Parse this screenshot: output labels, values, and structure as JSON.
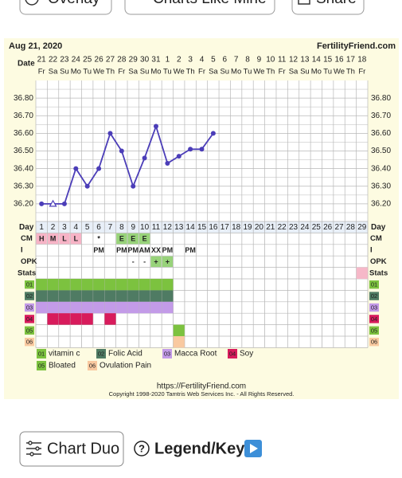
{
  "toolbar": {
    "buttons": [
      "Overlay",
      "Charts Like Mine",
      "Share"
    ]
  },
  "chart_data": {
    "type": "line",
    "title": "Aug 21, 2020",
    "site": "FertilityFriend.com",
    "date_label": "Date",
    "categories": [
      21,
      22,
      23,
      24,
      25,
      26,
      27,
      28,
      29,
      30,
      31,
      1,
      2,
      3,
      4,
      5,
      6,
      7,
      8,
      9,
      10,
      11,
      12,
      13,
      14,
      15,
      16,
      17,
      18
    ],
    "weekdays": [
      "Fr",
      "Sa",
      "Su",
      "Mo",
      "Tu",
      "We",
      "Th",
      "Fr",
      "Sa",
      "Su",
      "Mo",
      "Tu",
      "We",
      "Th",
      "Fr",
      "Sa",
      "Su",
      "Mo",
      "Tu",
      "We",
      "Th",
      "Fr",
      "Sa",
      "Su",
      "Mo",
      "Tu",
      "We",
      "Th",
      "Fr"
    ],
    "series": [
      {
        "color": "#4b3db8",
        "values": [
          36.2,
          36.2,
          36.2,
          36.4,
          36.3,
          36.4,
          36.6,
          36.5,
          36.3,
          36.46,
          36.64,
          36.43,
          36.47,
          36.51,
          36.51,
          36.6,
          null,
          null,
          null,
          null,
          null,
          null,
          null,
          null,
          null,
          null,
          null,
          null,
          null
        ],
        "markers": [
          "circle",
          "triangle-open",
          "circle",
          "circle",
          "circle",
          "circle",
          "circle",
          "circle",
          "circle",
          "circle",
          "circle",
          "circle",
          "circle",
          "circle",
          "circle",
          "circle",
          null,
          null,
          null,
          null,
          null,
          null,
          null,
          null,
          null,
          null,
          null,
          null,
          null
        ]
      }
    ],
    "ylim": [
      36.1,
      36.9
    ],
    "yticks": [
      {
        "value": 36.2,
        "label": "36.20"
      },
      {
        "value": 36.3,
        "label": "36.30"
      },
      {
        "value": 36.4,
        "label": "36.40"
      },
      {
        "value": 36.5,
        "label": "36.50"
      },
      {
        "value": 36.6,
        "label": "36.60"
      },
      {
        "value": 36.7,
        "label": "36.70"
      },
      {
        "value": 36.8,
        "label": "36.80"
      }
    ],
    "grid": true,
    "day_label": "Day",
    "days": [
      1,
      2,
      3,
      4,
      5,
      6,
      7,
      8,
      9,
      10,
      11,
      12,
      13,
      14,
      15,
      16,
      17,
      18,
      19,
      20,
      21,
      22,
      23,
      24,
      25,
      26,
      27,
      28,
      29
    ],
    "rows": [
      {
        "label": "CM",
        "cells": [
          {
            "text": "H",
            "color": "#f7b3c6"
          },
          {
            "text": "M",
            "color": "#f7b3c6"
          },
          {
            "text": "L",
            "color": "#f7b3c6"
          },
          {
            "text": "L",
            "color": "#f7b3c6"
          },
          null,
          {
            "text": "*"
          },
          null,
          {
            "text": "E",
            "color": "#98d37a"
          },
          {
            "text": "E",
            "color": "#98d37a"
          },
          {
            "text": "E",
            "color": "#98d37a"
          },
          null,
          null,
          null,
          null,
          null,
          null,
          null,
          null,
          null,
          null,
          null,
          null,
          null,
          null,
          null,
          null,
          null,
          null,
          null
        ]
      },
      {
        "label": "I",
        "cells": [
          null,
          null,
          null,
          null,
          null,
          {
            "text": "PM"
          },
          null,
          {
            "text": "PM"
          },
          {
            "text": "PM"
          },
          {
            "text": "AM"
          },
          {
            "text": "XX"
          },
          {
            "text": "PM"
          },
          null,
          {
            "text": "PM"
          },
          null,
          null,
          null,
          null,
          null,
          null,
          null,
          null,
          null,
          null,
          null,
          null,
          null,
          null,
          null
        ]
      },
      {
        "label": "OPK",
        "cells": [
          null,
          null,
          null,
          null,
          null,
          null,
          null,
          null,
          {
            "text": "-"
          },
          {
            "text": "-"
          },
          {
            "text": "+",
            "color": "#98d37a"
          },
          {
            "text": "+",
            "color": "#98d37a"
          },
          null,
          null,
          null,
          null,
          null,
          null,
          null,
          null,
          null,
          null,
          null,
          null,
          null,
          null,
          null,
          null,
          null
        ]
      }
    ],
    "stats": {
      "label": "Stats",
      "color": "#f6b8c8",
      "days": [
        29
      ]
    },
    "stat_rows": [
      {
        "code": "01",
        "name": "vitamin c",
        "color": "#7cc23f",
        "days": [
          1,
          2,
          3,
          4,
          5,
          6,
          7,
          8,
          9,
          10,
          11,
          12
        ]
      },
      {
        "code": "02",
        "name": "Folic Acid",
        "color": "#4f7b63",
        "days": [
          1,
          2,
          3,
          4,
          5,
          6,
          7,
          8,
          9,
          10,
          11,
          12
        ]
      },
      {
        "code": "03",
        "name": "Macca Root",
        "color": "#c39be8",
        "days": [
          1,
          2,
          3,
          4,
          5,
          6,
          7,
          8,
          9,
          10,
          11,
          12
        ]
      },
      {
        "code": "04",
        "name": "Soy",
        "color": "#d81b5c",
        "days": [
          2,
          3,
          4,
          5,
          7
        ]
      },
      {
        "code": "05",
        "name": "Bloated",
        "color": "#7cc23f",
        "days": [
          13
        ]
      },
      {
        "code": "06",
        "name": "Ovulation Pain",
        "color": "#f9c9a0",
        "days": [
          13
        ]
      }
    ],
    "footer": {
      "url": "https://FertilityFriend.com",
      "copyright": "Copyright 1998-2020 Tamtris Web Services Inc. - All Rights Reserved."
    }
  },
  "bottom": {
    "chart_duo": "Chart Duo",
    "legend_key": "Legend/Key"
  }
}
